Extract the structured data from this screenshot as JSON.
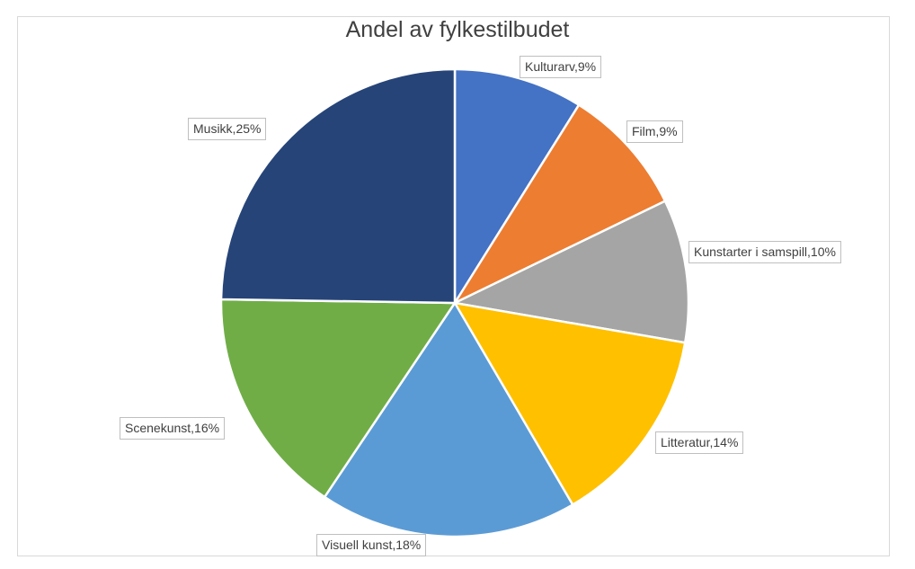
{
  "chart_data": {
    "type": "pie",
    "title": "Andel av fylkestilbudet",
    "labels": [
      "Kulturarv",
      "Film",
      "Kunstarter i samspill",
      "Litteratur",
      "Visuell kunst",
      "Scenekunst",
      "Musikk"
    ],
    "values": [
      9,
      9,
      10,
      14,
      18,
      16,
      25
    ],
    "unit": "%",
    "data_labels": [
      "Kulturarv,9%",
      "Film,9%",
      "Kunstarter i samspill,10%",
      "Litteratur,14%",
      "Visuell kunst,18%",
      "Scenekunst,16%",
      "Musikk,25%"
    ],
    "colors": [
      "#4472C4",
      "#ED7D31",
      "#A5A5A5",
      "#FFC000",
      "#5B9BD5",
      "#70AD47",
      "#264478"
    ],
    "legend": "none",
    "start_angle": "12 o'clock",
    "direction": "clockwise"
  }
}
